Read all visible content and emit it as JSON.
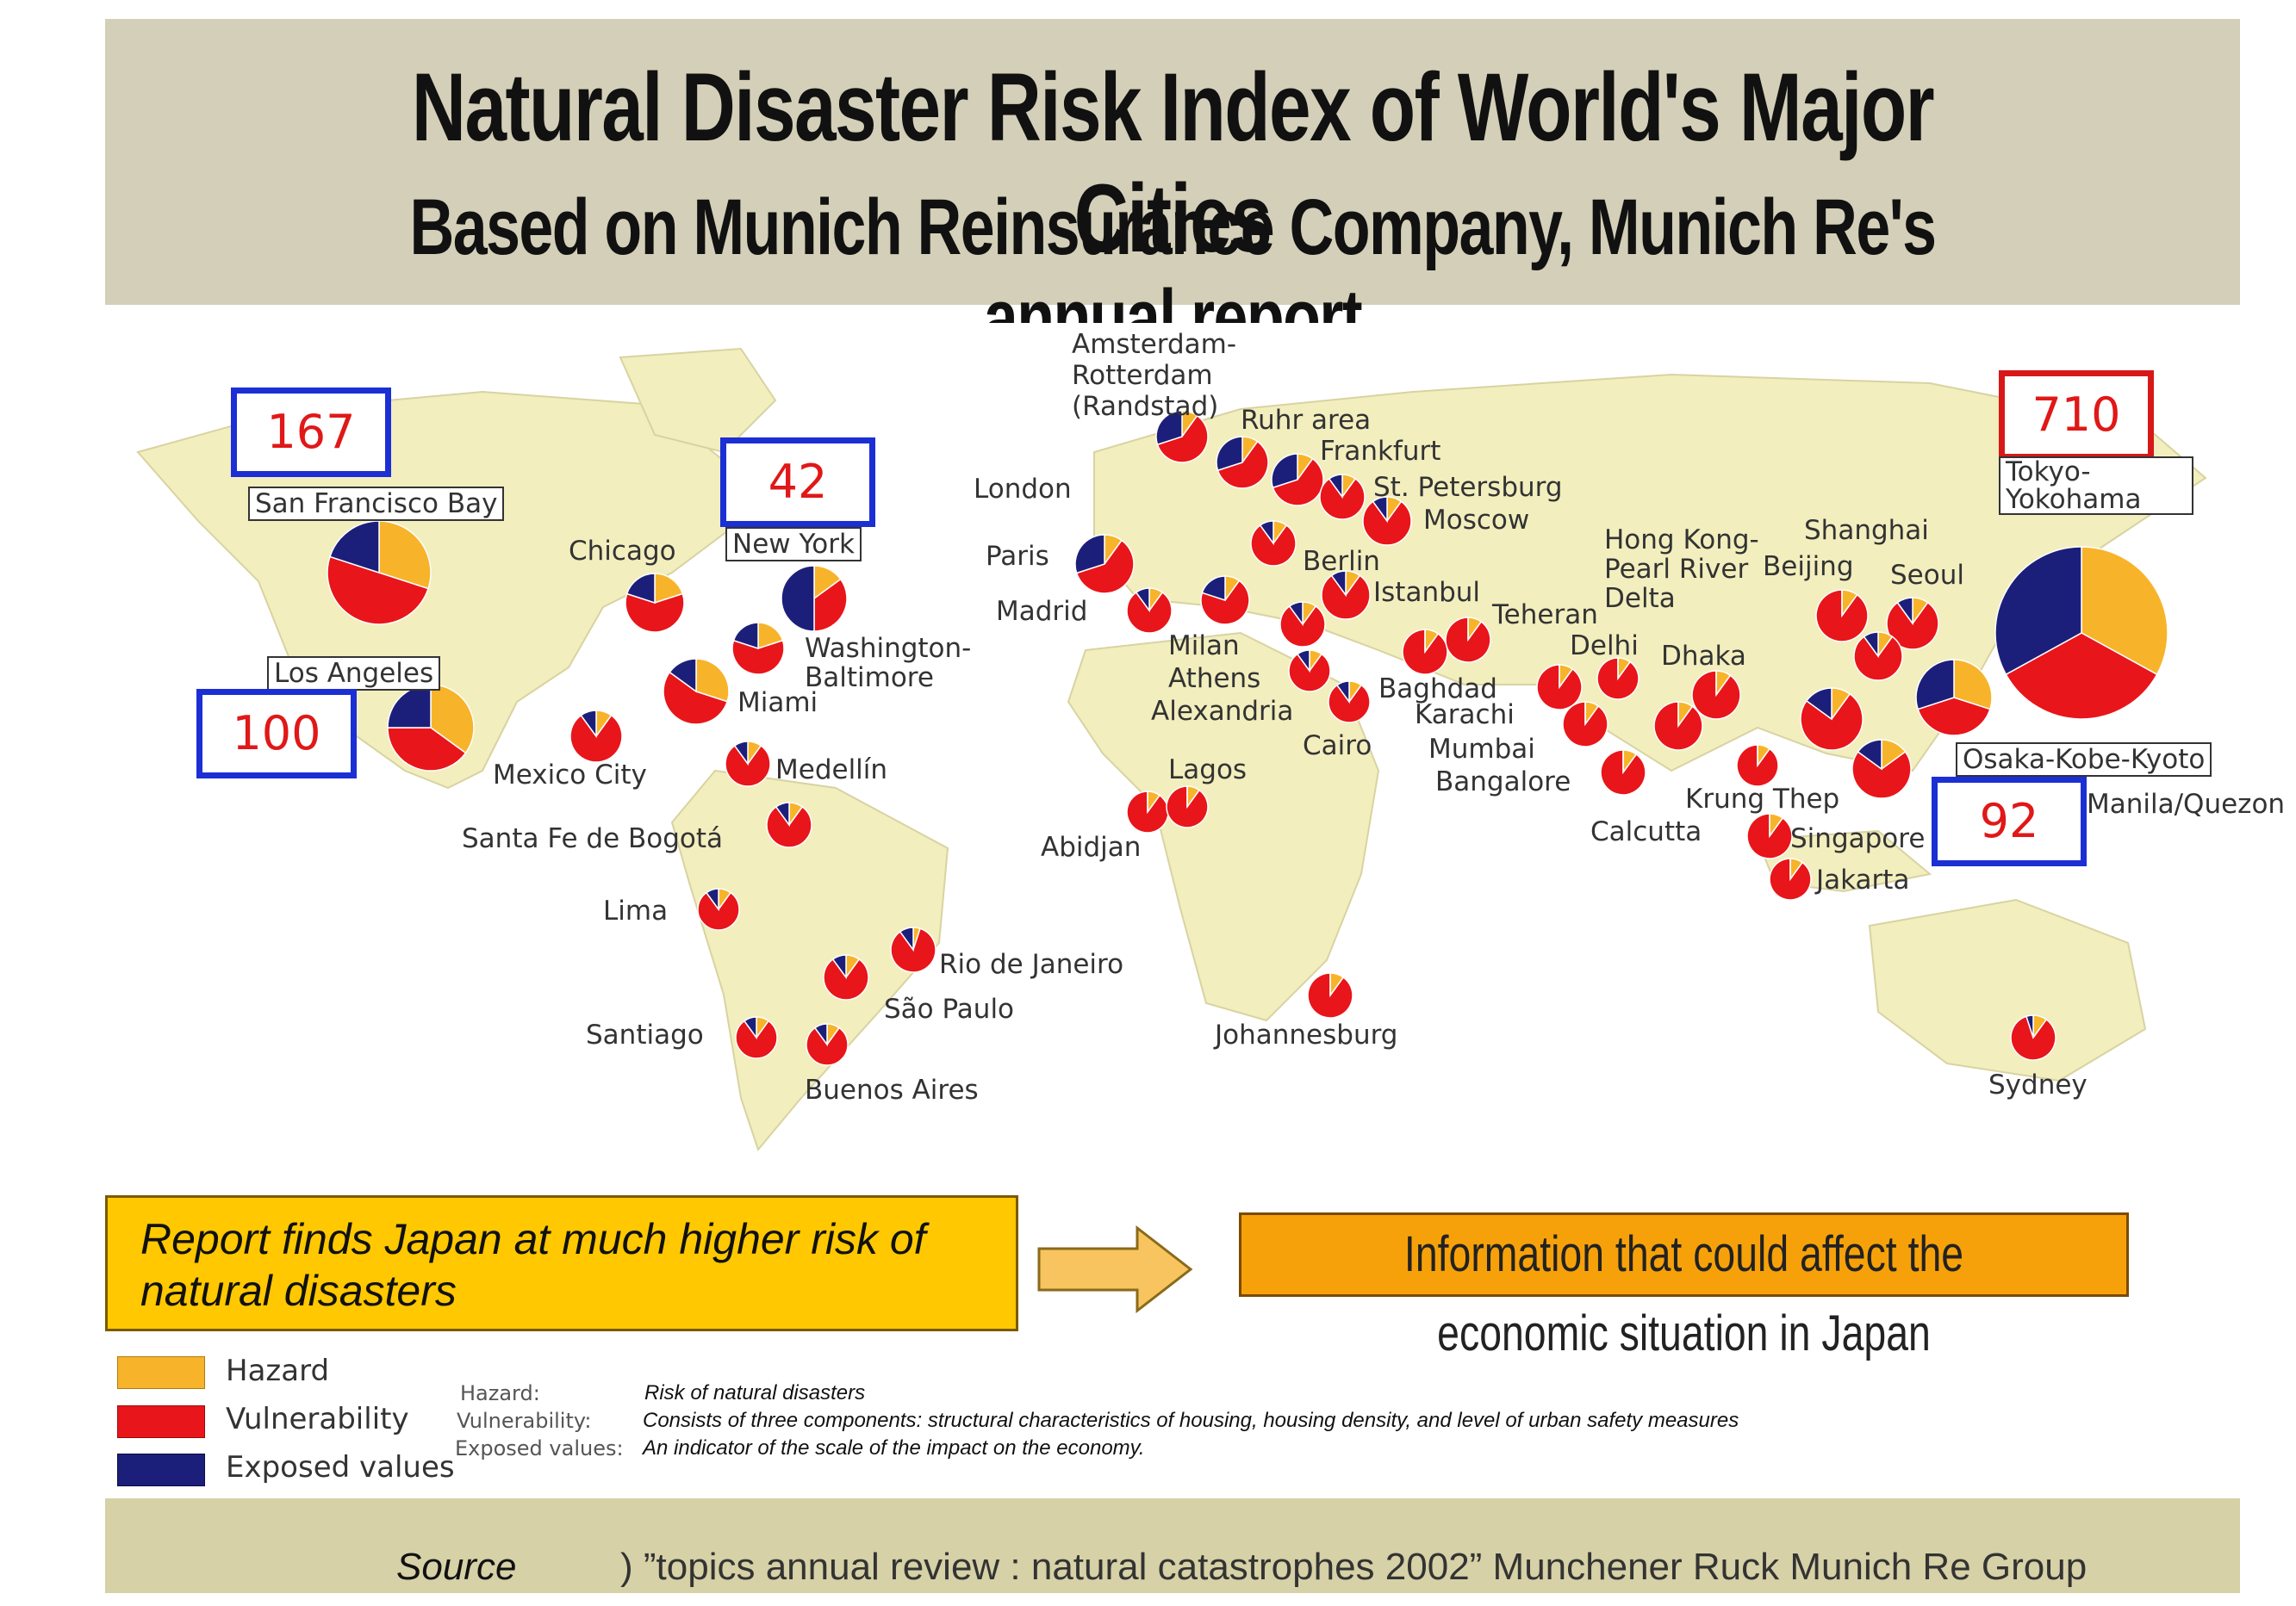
{
  "header": {
    "title": "Natural Disaster Risk Index of World's Major Cities",
    "subtitle": "Based on Munich Reinsurance Company, Munich Re's annual report"
  },
  "colors": {
    "hazard": "#f7b42a",
    "vulnerability": "#e8151b",
    "exposed": "#1c1f7a",
    "risk_box_blue": "#1b2fd4",
    "risk_box_red": "#d81818"
  },
  "risk_boxes": {
    "sf": {
      "value": "167",
      "city": "San Francisco Bay"
    },
    "ny": {
      "value": "42",
      "city": "New York"
    },
    "la": {
      "value": "100",
      "city": "Los Angeles"
    },
    "tokyo": {
      "value": "710",
      "city": "Tokyo-Yokohama"
    },
    "osaka": {
      "value": "92",
      "city": "Osaka-Kobe-Kyoto"
    }
  },
  "city_labels": {
    "chicago": "Chicago",
    "washington": "Washington-Baltimore",
    "miami": "Miami",
    "mexico": "Mexico City",
    "medellin": "Medellín",
    "bogota": "Santa Fe de Bogotá",
    "lima": "Lima",
    "santiago": "Santiago",
    "buenos_aires": "Buenos Aires",
    "sao_paulo": "São Paulo",
    "rio": "Rio de Janeiro",
    "amsterdam": "Amsterdam-Rotterdam (Randstad)",
    "ruhr": "Ruhr area",
    "frankfurt": "Frankfurt",
    "london": "London",
    "paris": "Paris",
    "madrid": "Madrid",
    "st_petersburg": "St. Petersburg",
    "moscow": "Moscow",
    "berlin": "Berlin",
    "istanbul": "Istanbul",
    "milan": "Milan",
    "athens": "Athens",
    "alexandria": "Alexandria",
    "cairo": "Cairo",
    "lagos": "Lagos",
    "abidjan": "Abidjan",
    "johannesburg": "Johannesburg",
    "teheran": "Teheran",
    "baghdad": "Baghdad",
    "karachi": "Karachi",
    "delhi": "Delhi",
    "mumbai": "Mumbai",
    "bangalore": "Bangalore",
    "calcutta": "Calcutta",
    "dhaka": "Dhaka",
    "hong_kong": "Hong Kong- Pearl River Delta",
    "beijing": "Beijing",
    "shanghai": "Shanghai",
    "seoul": "Seoul",
    "krung_thep": "Krung Thep",
    "singapore": "Singapore",
    "jakarta": "Jakarta",
    "manila": "Manila/Quezon",
    "sydney": "Sydney"
  },
  "callouts": {
    "report": "Report finds Japan at much higher risk of natural disasters",
    "info": "Information that could affect the economic situation in Japan"
  },
  "legend": {
    "hazard": "Hazard",
    "vulnerability": "Vulnerability",
    "exposed": "Exposed values"
  },
  "definitions": {
    "hazard_key": "Hazard:",
    "hazard_val": "Risk of natural disasters",
    "vulnerability_key": "Vulnerability:",
    "vulnerability_val": "Consists of three components: structural characteristics of housing, housing density, and level of urban safety measures",
    "exposed_key": "Exposed values:",
    "exposed_val": "An indicator of the scale of the impact on the economy."
  },
  "source": {
    "prefix": "Source",
    "text": ") ”topics annual review : natural catastrophes 2002” Munchener Ruck Munich Re Group"
  }
}
